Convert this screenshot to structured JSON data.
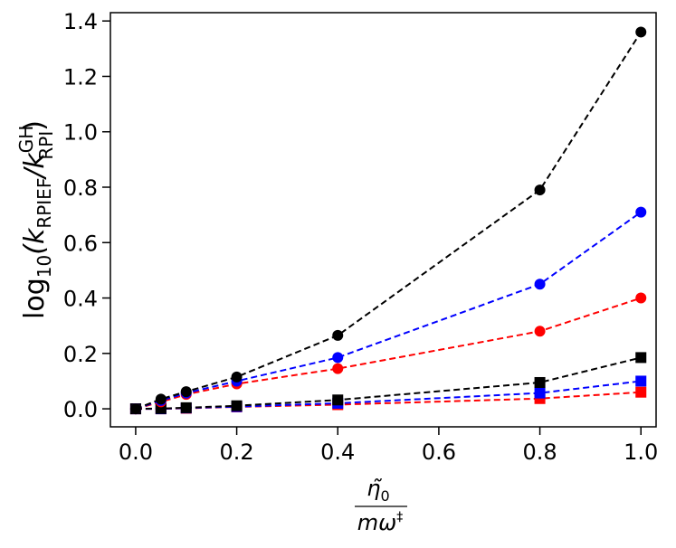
{
  "chart_data": {
    "type": "line",
    "title": "",
    "xlabel_numerator": "η̃",
    "xlabel_numerator_sub": "0",
    "xlabel_denominator": "mω",
    "xlabel_denominator_sup": "‡",
    "ylabel_parts": {
      "prefix": "log",
      "sub10": "10",
      "open": "(k",
      "sub1": "RPIEF",
      "slash": "/k",
      "sup2": "GH",
      "sub2": "RPI",
      "close": ")"
    },
    "xlim": [
      -0.05,
      1.03
    ],
    "ylim": [
      -0.065,
      1.43
    ],
    "xticks": [
      0.0,
      0.2,
      0.4,
      0.6,
      0.8,
      1.0
    ],
    "xtick_labels": [
      "0.0",
      "0.2",
      "0.4",
      "0.6",
      "0.8",
      "1.0"
    ],
    "yticks": [
      0.0,
      0.2,
      0.4,
      0.6,
      0.8,
      1.0,
      1.2,
      1.4
    ],
    "ytick_labels": [
      "0.0",
      "0.2",
      "0.4",
      "0.6",
      "0.8",
      "1.0",
      "1.2",
      "1.4"
    ],
    "grid": false,
    "x": [
      0.0,
      0.05,
      0.1,
      0.2,
      0.4,
      0.8,
      1.0
    ],
    "series": [
      {
        "name": "black-circles",
        "color": "#000000",
        "marker": "circle",
        "values": [
          0.0,
          0.035,
          0.062,
          0.115,
          0.265,
          0.79,
          1.36
        ]
      },
      {
        "name": "blue-circles",
        "color": "#0000ff",
        "marker": "circle",
        "values": [
          0.0,
          0.03,
          0.057,
          0.1,
          0.185,
          0.45,
          0.71
        ]
      },
      {
        "name": "red-circles",
        "color": "#ff0000",
        "marker": "circle",
        "values": [
          0.0,
          0.025,
          0.052,
          0.09,
          0.145,
          0.28,
          0.4
        ]
      },
      {
        "name": "black-squares",
        "color": "#000000",
        "marker": "square",
        "values": [
          0.0,
          0.001,
          0.004,
          0.011,
          0.032,
          0.095,
          0.185
        ]
      },
      {
        "name": "blue-squares",
        "color": "#0000ff",
        "marker": "square",
        "values": [
          0.0,
          0.0,
          0.003,
          0.008,
          0.02,
          0.057,
          0.1
        ]
      },
      {
        "name": "red-squares",
        "color": "#ff0000",
        "marker": "square",
        "values": [
          0.0,
          0.0,
          0.002,
          0.007,
          0.015,
          0.037,
          0.06
        ]
      }
    ]
  }
}
